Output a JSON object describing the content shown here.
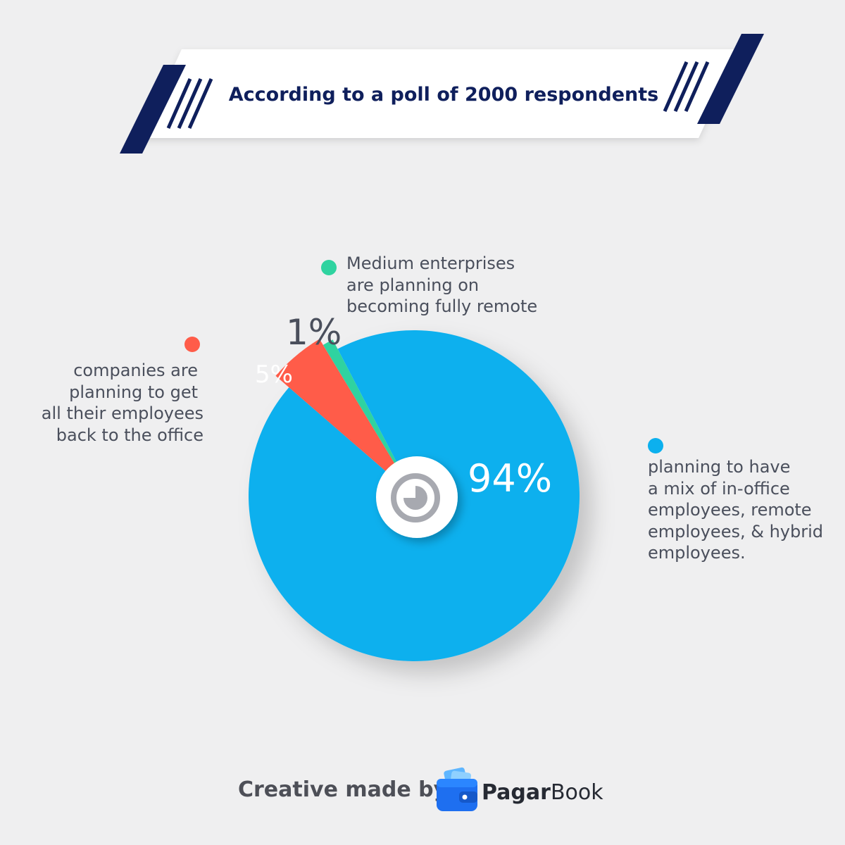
{
  "banner": {
    "title": "According to a poll of 2000 respondents",
    "accent_color": "#0f1f5c"
  },
  "chart_data": {
    "type": "pie",
    "slices": [
      {
        "value": 94,
        "label": "94%",
        "description": [
          "planning to have",
          "a mix of in-office",
          "employees, remote",
          "employees, & hybrid",
          "employees."
        ],
        "color": "#0cb0ee"
      },
      {
        "value": 5,
        "label": "5%",
        "description": [
          "companies are",
          "planning to get",
          "all their employees",
          "back to the office"
        ],
        "color": "#ff5c49"
      },
      {
        "value": 1,
        "label": "1%",
        "description": [
          "Medium enterprises",
          "are planning on",
          "becoming fully remote"
        ],
        "color": "#2fd3a0"
      }
    ]
  },
  "footer": {
    "credit": "Creative made by",
    "brand_bold": "Pagar",
    "brand_regular": "Book",
    "logo_icon": "wallet-icon"
  }
}
